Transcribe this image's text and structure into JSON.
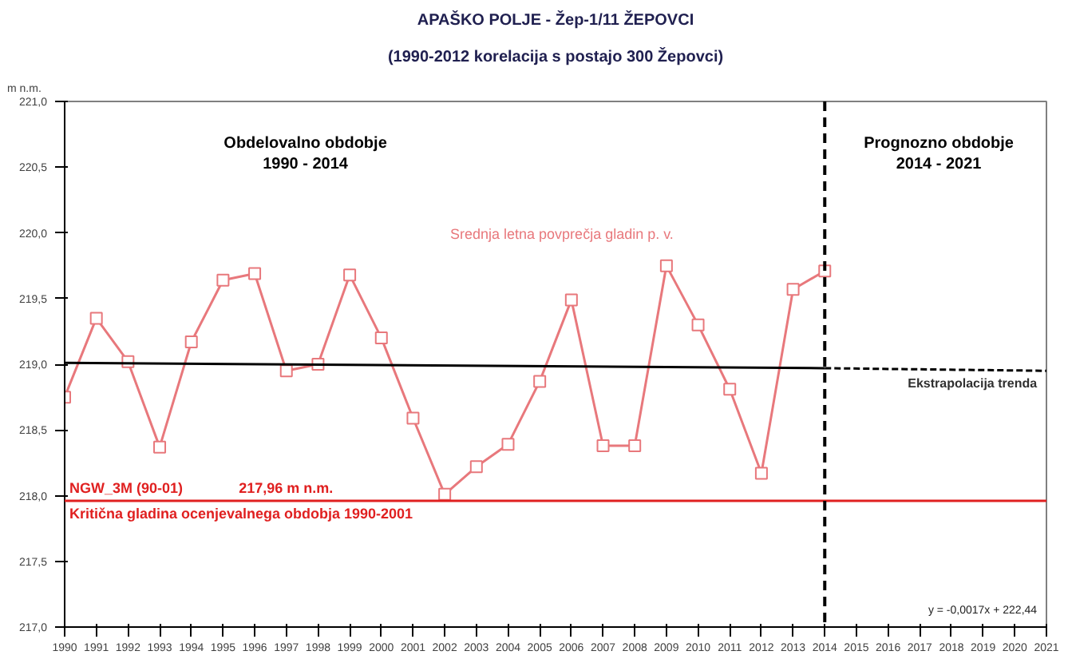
{
  "chart_data": {
    "type": "line",
    "title": "APAŠKO POLJE - Žep-1/11 ŽEPOVCI",
    "subtitle": "(1990-2012 korelacija s postajo 300 Žepovci)",
    "ylabel": "m n.m.",
    "x": [
      1990,
      1991,
      1992,
      1993,
      1994,
      1995,
      1996,
      1997,
      1998,
      1999,
      2000,
      2001,
      2002,
      2003,
      2004,
      2005,
      2006,
      2007,
      2008,
      2009,
      2010,
      2011,
      2012,
      2013,
      2014
    ],
    "series": [
      {
        "name": "Srednja letna povprečja gladin p. v.",
        "color": "#e8787c",
        "marker": "square",
        "values": [
          218.75,
          219.35,
          219.02,
          218.37,
          219.17,
          219.64,
          219.69,
          218.95,
          219.0,
          219.68,
          219.2,
          218.59,
          218.01,
          218.22,
          218.39,
          218.87,
          219.49,
          218.38,
          218.38,
          219.75,
          219.3,
          218.81,
          218.17,
          219.57,
          219.71
        ]
      },
      {
        "color": "#000000",
        "x": [
          1990,
          2014
        ],
        "values": [
          219.01,
          218.97
        ],
        "marker": "none",
        "line_style": "solid"
      },
      {
        "name": "Ekstrapolacija trenda",
        "color": "#000000",
        "x": [
          2014,
          2021
        ],
        "values": [
          218.97,
          218.95
        ],
        "marker": "none",
        "line_style": "dashed"
      }
    ],
    "xlim": [
      1990,
      2021
    ],
    "xticks": [
      1990,
      1991,
      1992,
      1993,
      1994,
      1995,
      1996,
      1997,
      1998,
      1999,
      2000,
      2001,
      2002,
      2003,
      2004,
      2005,
      2006,
      2007,
      2008,
      2009,
      2010,
      2011,
      2012,
      2013,
      2014,
      2015,
      2016,
      2017,
      2018,
      2019,
      2020,
      2021
    ],
    "ylim": [
      217,
      221
    ],
    "yticks": [
      {
        "value": 217,
        "label": "217,0"
      },
      {
        "value": 217.5,
        "label": "217,5"
      },
      {
        "value": 218,
        "label": "218,0"
      },
      {
        "value": 218.5,
        "label": "218,5"
      },
      {
        "value": 219,
        "label": "219,0"
      },
      {
        "value": 219.5,
        "label": "219,5"
      },
      {
        "value": 220,
        "label": "220,0"
      },
      {
        "value": 220.5,
        "label": "220,5"
      },
      {
        "value": 221,
        "label": "221,0"
      }
    ],
    "ref_lines": [
      {
        "axis": "y",
        "value": 217.96,
        "label": "NGW_3M (90-01)",
        "color": "#e02020",
        "line_style": "solid"
      },
      {
        "axis": "x",
        "value": 2014,
        "color": "#000000",
        "line_style": "dashed"
      }
    ],
    "annotations": [
      "Obdelovalno obdobje\n1990 - 2014",
      "Prognozno obdobje\n2014 - 2021",
      "217,96 m n.m.",
      "Kritična gladina ocenjevalnega obdobja 1990-2001",
      "y = -0,0017x + 222,44"
    ],
    "grid": false,
    "legend": false
  }
}
